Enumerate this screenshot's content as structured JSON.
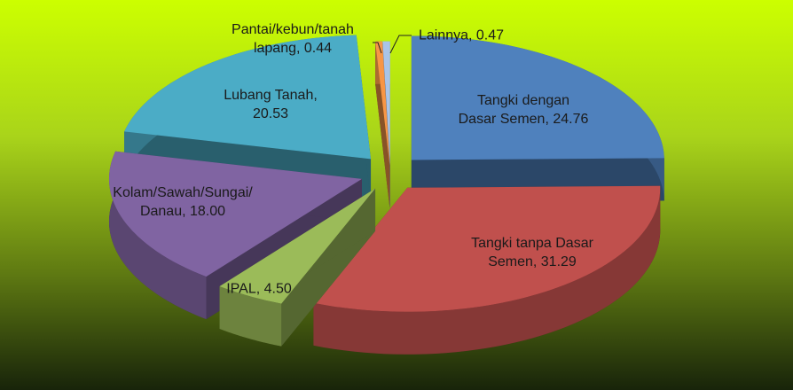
{
  "chart_data": {
    "type": "pie",
    "value_labels": [
      "Tangki dengan Dasar Semen, 24.76",
      "Tangki tanpa Dasar Semen, 31.29",
      "IPAL, 4.50",
      "Kolam/Sawah/Sungai/Danau, 18.00",
      "Lubang Tanah, 20.53",
      "Pantai/kebun/tanah lapang, 0.44",
      "Lainnya, 0.47"
    ],
    "values": [
      24.76,
      31.29,
      4.5,
      18.0,
      20.53,
      0.44,
      0.47
    ],
    "colors": [
      "#4f81bd",
      "#c0504d",
      "#9bbb59",
      "#8064a2",
      "#4bacc6",
      "#f79646",
      "#a9c4e8"
    ]
  }
}
